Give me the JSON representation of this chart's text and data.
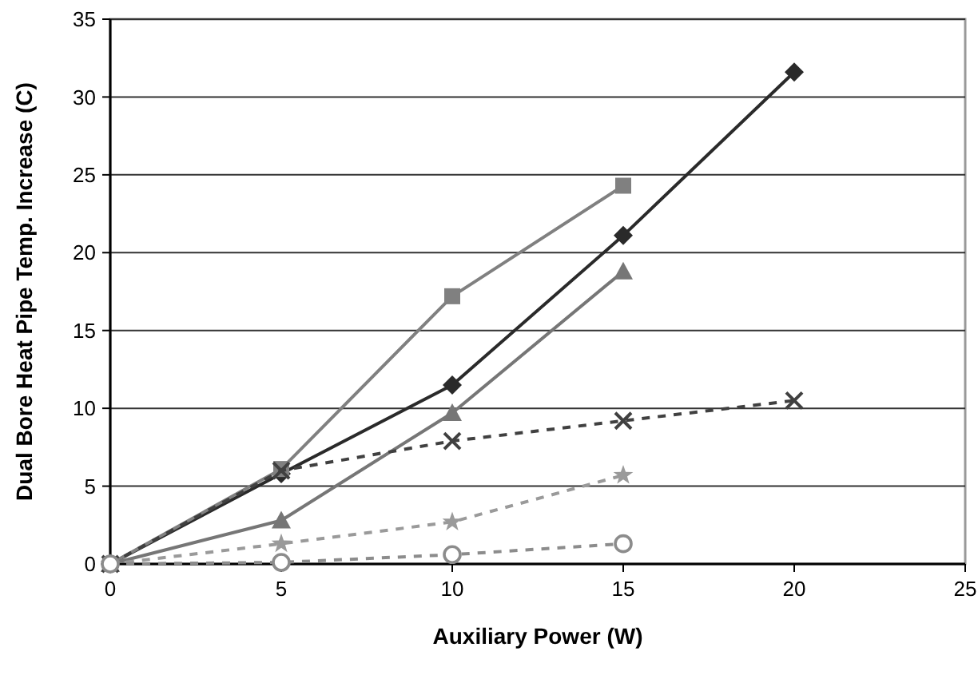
{
  "chart_data": {
    "type": "line",
    "xlabel": "Auxiliary Power (W)",
    "ylabel": "Dual Bore Heat Pipe Temp. Increase (C)",
    "xlim": [
      0,
      25
    ],
    "xticks": [
      0,
      5,
      10,
      15,
      20,
      25
    ],
    "ylim": [
      0,
      35
    ],
    "yticks": [
      0,
      5,
      10,
      15,
      20,
      25,
      30,
      35
    ],
    "grid": "y",
    "series": [
      {
        "color": "#2a2a2a",
        "marker": "diamond",
        "line_style": "solid",
        "x": [
          0,
          5,
          10,
          15,
          20
        ],
        "values": [
          0,
          5.8,
          11.5,
          21.1,
          31.6
        ]
      },
      {
        "color": "#808080",
        "marker": "square",
        "line_style": "solid",
        "x": [
          0,
          5,
          10,
          15
        ],
        "values": [
          0,
          6.1,
          17.2,
          24.3
        ]
      },
      {
        "color": "#767676",
        "marker": "triangle",
        "line_style": "solid",
        "x": [
          0,
          5,
          10,
          15
        ],
        "values": [
          0,
          2.8,
          9.7,
          18.8
        ]
      },
      {
        "color": "#404040",
        "marker": "cross",
        "line_style": "dashed",
        "x": [
          0,
          5,
          10,
          15,
          20
        ],
        "values": [
          0,
          6.0,
          7.9,
          9.2,
          10.5
        ]
      },
      {
        "color": "#9a9a9a",
        "marker": "star",
        "line_style": "dashed",
        "x": [
          0,
          5,
          10,
          15
        ],
        "values": [
          0,
          1.3,
          2.7,
          5.7
        ]
      },
      {
        "color": "#8c8c8c",
        "marker": "circle",
        "line_style": "dashed",
        "x": [
          0,
          5,
          10,
          15
        ],
        "values": [
          0,
          0.1,
          0.6,
          1.3
        ]
      }
    ]
  }
}
